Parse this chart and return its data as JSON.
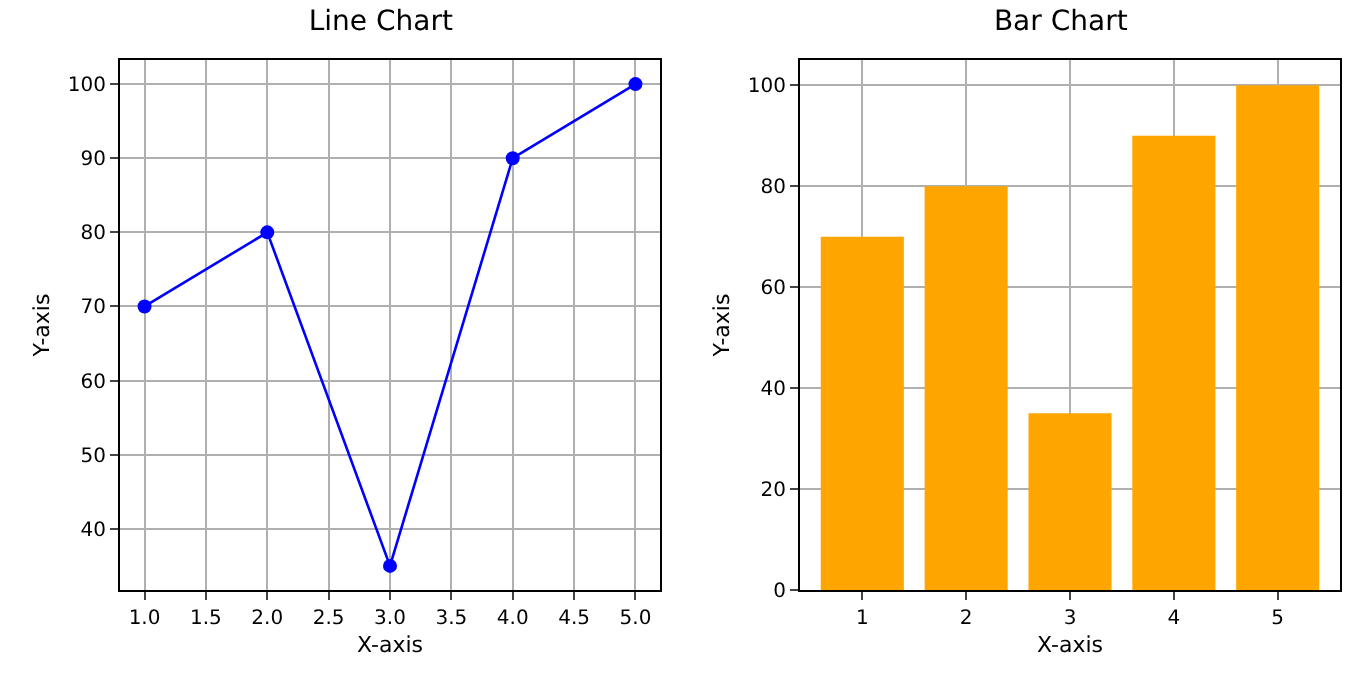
{
  "chart_data": [
    {
      "type": "line",
      "title": "Line Chart",
      "xlabel": "X-axis",
      "ylabel": "Y-axis",
      "x": [
        1,
        2,
        3,
        4,
        5
      ],
      "series": [
        {
          "color": "#0000ff",
          "values": [
            70,
            80,
            35,
            90,
            100
          ]
        }
      ],
      "xlim": [
        0.8,
        5.2
      ],
      "xticks": [
        {
          "value": 1,
          "label": "1.0"
        },
        {
          "value": 1.5,
          "label": "1.5"
        },
        {
          "value": 2,
          "label": "2.0"
        },
        {
          "value": 2.5,
          "label": "2.5"
        },
        {
          "value": 3,
          "label": "3.0"
        },
        {
          "value": 3.5,
          "label": "3.5"
        },
        {
          "value": 4,
          "label": "4.0"
        },
        {
          "value": 4.5,
          "label": "4.5"
        },
        {
          "value": 5,
          "label": "5.0"
        }
      ],
      "ylim": [
        31.75,
        103.25
      ],
      "yticks": [
        40,
        50,
        60,
        70,
        80,
        90,
        100
      ],
      "grid": true,
      "marker": "circle",
      "line_style": "solid"
    },
    {
      "type": "bar",
      "title": "Bar Chart",
      "xlabel": "X-axis",
      "ylabel": "Y-axis",
      "categories": [
        "1",
        "2",
        "3",
        "4",
        "5"
      ],
      "series": [
        {
          "color": "#ffa500",
          "values": [
            70,
            80,
            35,
            90,
            100
          ]
        }
      ],
      "ylim": [
        0,
        105
      ],
      "yticks": [
        0,
        20,
        40,
        60,
        80,
        100
      ],
      "grid": true
    }
  ]
}
